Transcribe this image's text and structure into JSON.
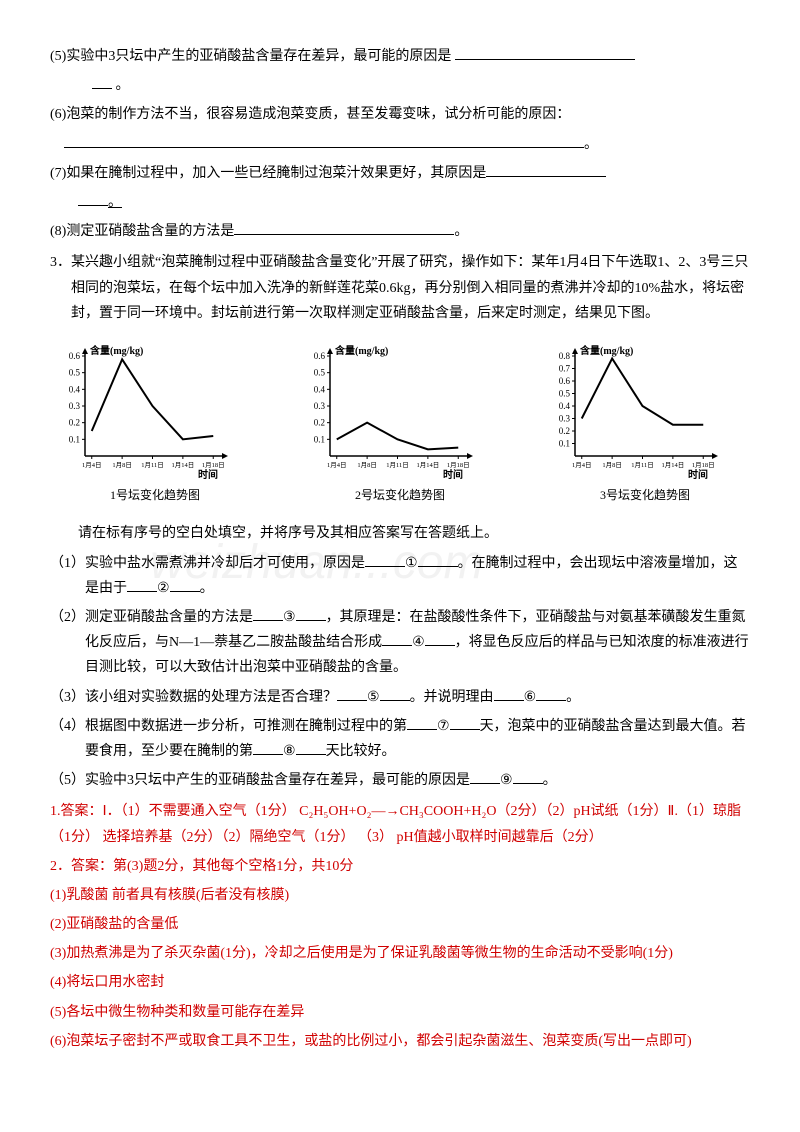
{
  "q5": "(5)实验中3只坛中产生的亚硝酸盐含量存在差异，最可能的原因是",
  "q5_end": "。",
  "q6": "(6)泡菜的制作方法不当，很容易造成泡菜变质，甚至发霉变味，试分析可能的原因：",
  "q6_end": "。",
  "q7": "(7)如果在腌制过程中，加入一些已经腌制过泡菜汁效果更好，其原因是",
  "q7_end": "。",
  "q8": "(8)测定亚硝酸盐含量的方法是",
  "q8_end": "。",
  "q3_main": "3．某兴趣小组就“泡菜腌制过程中亚硝酸盐含量变化”开展了研究，操作如下：某年1月4日下午选取1、2、3号三只相同的泡菜坛，在每个坛中加入洗净的新鲜莲花菜0.6kg，再分别倒入相同量的煮沸并冷却的10%盐水，将坛密封，置于同一环境中。封坛前进行第一次取样测定亚硝酸盐含量，后来定时测定，结果见下图。",
  "intro_after_charts": "请在标有序号的空白处填空，并将序号及其相应答案写在答题纸上。",
  "sub1_a": "（1）实验中盐水需煮沸并冷却后才可使用，原因是",
  "sub1_b": "。在腌制过程中，会出现坛中溶液量增加，这是由于",
  "sub1_c": "。",
  "sub2_a": "（2）测定亚硝酸盐含量的方法是",
  "sub2_b": "，其原理是：在盐酸酸性条件下，亚硝酸盐与对氨基苯磺酸发生重氮化反应后，与N—1—萘基乙二胺盐酸盐结合形成",
  "sub2_c": "，将显色反应后的样品与已知浓度的标准液进行目测比较，可以大致估计出泡菜中亚硝酸盐的含量。",
  "sub3_a": "（3）该小组对实验数据的处理方法是否合理？",
  "sub3_b": "。并说明理由",
  "sub3_c": "。",
  "sub4_a": "（4）根据图中数据进一步分析，可推测在腌制过程中的第",
  "sub4_b": "天，泡菜中的亚硝酸盐含量达到最大值。若要食用，至少要在腌制的第",
  "sub4_c": "天比较好。",
  "sub5_a": "（5）实验中3只坛中产生的亚硝酸盐含量存在差异，最可能的原因是",
  "sub5_b": "。",
  "ans1": "1.答案：Ⅰ．（1）不需要通入空气（1分）  C₂H₅OH+O₂—→CH₃COOH+H₂O（2分）（2）pH试纸（1分）Ⅱ.（1）琼脂（1分）  选择培养基（2分）（2）隔绝空气（1分） （3） pH值越小取样时间越靠后（2分）",
  "ans2_header": "2．答案：第(3)题2分，其他每个空格1分，共10分",
  "ans2_1": "(1)乳酸菌    前者具有核膜(后者没有核膜)",
  "ans2_2": "(2)亚硝酸盐的含量低",
  "ans2_3": "(3)加热煮沸是为了杀灭杂菌(1分)，冷却之后使用是为了保证乳酸菌等微生物的生命活动不受影响(1分)",
  "ans2_4": "(4)将坛口用水密封",
  "ans2_5": "(5)各坛中微生物种类和数量可能存在差异",
  "ans2_6": "(6)泡菜坛子密封不严或取食工具不卫生，或盐的比例过小，都会引起杂菌滋生、泡菜变质(写出一点即可)",
  "circled": [
    "①",
    "②",
    "③",
    "④",
    "⑤",
    "⑥",
    "⑦",
    "⑧",
    "⑨"
  ],
  "charts": {
    "ylabel": "含量(mg/kg)",
    "xlabel": "时间",
    "xticks": [
      "1月4日",
      "1月8日",
      "1月11日",
      "1月14日",
      "1月18日"
    ],
    "chart1": {
      "title": "1号坛变化趋势图",
      "ymax": 0.6,
      "yticks": [
        0.1,
        0.2,
        0.3,
        0.4,
        0.5,
        0.6
      ],
      "points": [
        [
          0,
          0.15
        ],
        [
          1,
          0.58
        ],
        [
          2,
          0.3
        ],
        [
          3,
          0.1
        ],
        [
          4,
          0.12
        ]
      ]
    },
    "chart2": {
      "title": "2号坛变化趋势图",
      "ymax": 0.6,
      "yticks": [
        0.1,
        0.2,
        0.3,
        0.4,
        0.5,
        0.6
      ],
      "points": [
        [
          0,
          0.1
        ],
        [
          1,
          0.2
        ],
        [
          2,
          0.1
        ],
        [
          3,
          0.04
        ],
        [
          4,
          0.05
        ]
      ]
    },
    "chart3": {
      "title": "3号坛变化趋势图",
      "ymax": 0.8,
      "yticks": [
        0.1,
        0.2,
        0.3,
        0.4,
        0.5,
        0.6,
        0.7,
        0.8
      ],
      "points": [
        [
          0,
          0.3
        ],
        [
          1,
          0.78
        ],
        [
          2,
          0.4
        ],
        [
          3,
          0.25
        ],
        [
          4,
          0.25
        ]
      ]
    },
    "axis_color": "#000",
    "line_color": "#000",
    "line_width": 2
  }
}
